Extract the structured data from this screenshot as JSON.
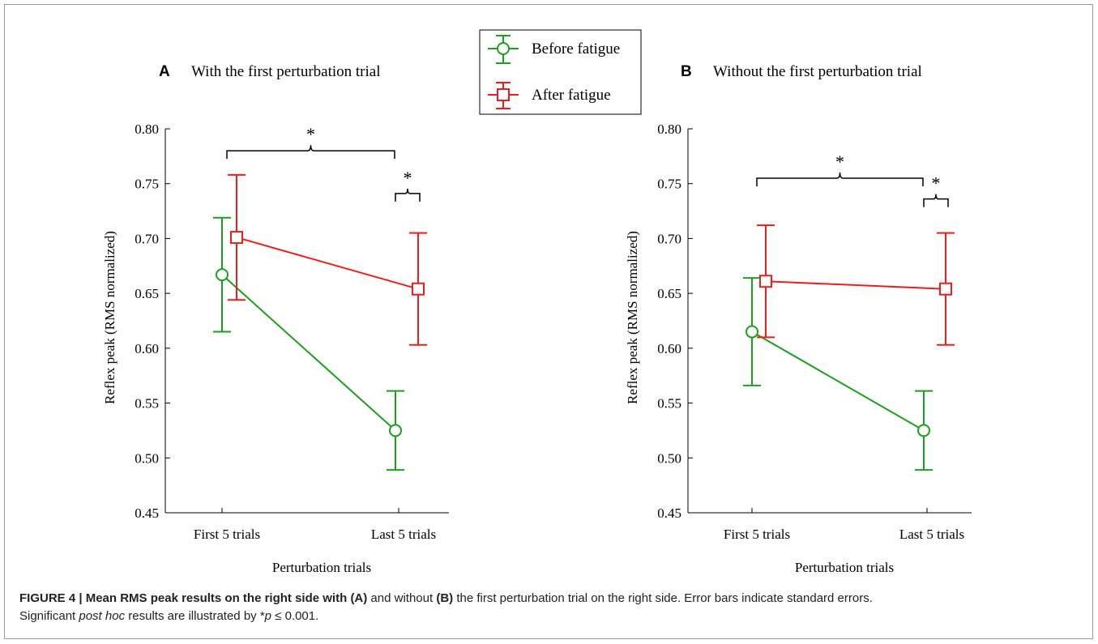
{
  "legend": {
    "before_label": "Before fatigue",
    "after_label": "After fatigue"
  },
  "colors": {
    "before": "#1e9e1e",
    "after": "#ee1c1c",
    "axis": "#000000"
  },
  "chart_data": [
    {
      "type": "line",
      "panel_letter": "A",
      "title": "With the first perturbation trial",
      "xlabel": "Perturbation trials",
      "ylabel": "Reflex peak (RMS normalized)",
      "categories": [
        "First 5 trials",
        "Last 5 trials"
      ],
      "ylim": [
        0.45,
        0.8
      ],
      "yticks": [
        "0.80",
        "0.75",
        "0.70",
        "0.65",
        "0.60",
        "0.55",
        "0.50",
        "0.45"
      ],
      "series": [
        {
          "name": "Before fatigue",
          "values": [
            0.667,
            0.525
          ],
          "err": [
            0.052,
            0.036
          ]
        },
        {
          "name": "After fatigue",
          "values": [
            0.701,
            0.654
          ],
          "err": [
            0.057,
            0.051
          ]
        }
      ],
      "significance": [
        {
          "text": "*",
          "between": "First 5 trials – Last 5 trials"
        },
        {
          "text": "*",
          "between": "Last 5 trials: Before vs After fatigue"
        }
      ]
    },
    {
      "type": "line",
      "panel_letter": "B",
      "title": "Without the first perturbation trial",
      "xlabel": "Perturbation trials",
      "ylabel": "Reflex peak (RMS normalized)",
      "categories": [
        "First 5 trials",
        "Last 5 trials"
      ],
      "ylim": [
        0.45,
        0.8
      ],
      "yticks": [
        "0.80",
        "0.75",
        "0.70",
        "0.65",
        "0.60",
        "0.55",
        "0.50",
        "0.45"
      ],
      "series": [
        {
          "name": "Before fatigue",
          "values": [
            0.615,
            0.525
          ],
          "err": [
            0.049,
            0.036
          ]
        },
        {
          "name": "After fatigue",
          "values": [
            0.661,
            0.654
          ],
          "err": [
            0.051,
            0.051
          ]
        }
      ],
      "significance": [
        {
          "text": "*",
          "between": "First 5 trials – Last 5 trials"
        },
        {
          "text": "*",
          "between": "Last 5 trials: Before vs After fatigue"
        }
      ]
    }
  ],
  "caption": {
    "label": "FIGURE 4 | Mean RMS peak results on the right side with ",
    "label_a": "(A)",
    "mid1": " and without ",
    "label_b": "(B)",
    "rest": " the first perturbation trial on the right side. Error bars indicate standard errors.",
    "line2_a": "Significant ",
    "line2_italic": "post hoc",
    "line2_b": " results are illustrated by *",
    "line2_p": "p",
    "line2_c": " ≤ 0.001."
  }
}
